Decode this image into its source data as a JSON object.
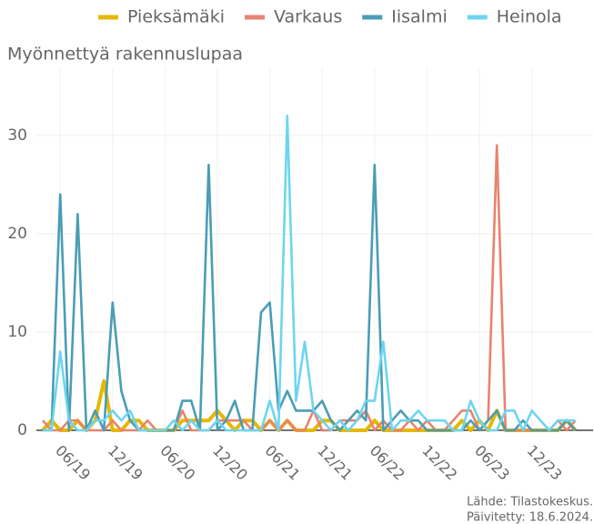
{
  "chart_data": {
    "type": "line",
    "title": "Myönnettyä rakennuslupaa",
    "source": "Lähde: Tilastokeskus.",
    "updated": "Päivitetty: 18.6.2024.",
    "x": [
      "2019-04",
      "2019-05",
      "2019-06",
      "2019-07",
      "2019-08",
      "2019-09",
      "2019-10",
      "2019-11",
      "2019-12",
      "2020-01",
      "2020-02",
      "2020-03",
      "2020-04",
      "2020-05",
      "2020-06",
      "2020-07",
      "2020-08",
      "2020-09",
      "2020-10",
      "2020-11",
      "2020-12",
      "2021-01",
      "2021-02",
      "2021-03",
      "2021-04",
      "2021-05",
      "2021-06",
      "2021-07",
      "2021-08",
      "2021-09",
      "2021-10",
      "2021-11",
      "2021-12",
      "2022-01",
      "2022-02",
      "2022-03",
      "2022-04",
      "2022-05",
      "2022-06",
      "2022-07",
      "2022-08",
      "2022-09",
      "2022-10",
      "2022-11",
      "2022-12",
      "2023-01",
      "2023-02",
      "2023-03",
      "2023-04",
      "2023-05",
      "2023-06",
      "2023-07",
      "2023-08",
      "2023-09",
      "2023-10",
      "2023-11",
      "2023-12",
      "2024-01",
      "2024-02",
      "2024-03",
      "2024-04",
      "2024-05"
    ],
    "series": [
      {
        "name": "Pieksämäki",
        "color": "#e6b800",
        "values": [
          0,
          1,
          0,
          0,
          1,
          0,
          1,
          5,
          0,
          0,
          1,
          1,
          0,
          0,
          0,
          0,
          1,
          1,
          1,
          1,
          2,
          1,
          0,
          1,
          1,
          0,
          1,
          0,
          1,
          0,
          0,
          0,
          1,
          1,
          0,
          0,
          0,
          0,
          1,
          0,
          0,
          0,
          0,
          0,
          0,
          0,
          0,
          0,
          1,
          0,
          1,
          0,
          2,
          0,
          0,
          0,
          0,
          0,
          0,
          0,
          1,
          0
        ]
      },
      {
        "name": "Varkaus",
        "color": "#e8836e",
        "values": [
          1,
          0,
          0,
          1,
          1,
          0,
          0,
          0,
          1,
          0,
          0,
          0,
          1,
          0,
          0,
          0,
          2,
          0,
          0,
          0,
          1,
          1,
          1,
          1,
          0,
          0,
          1,
          0,
          1,
          0,
          0,
          2,
          0,
          0,
          1,
          1,
          1,
          2,
          0,
          1,
          0,
          0,
          1,
          0,
          1,
          0,
          0,
          1,
          2,
          2,
          0,
          1,
          29,
          0,
          0,
          0,
          0,
          0,
          0,
          1,
          0,
          1
        ]
      },
      {
        "name": "Iisalmi",
        "color": "#4a9db5",
        "values": [
          0,
          0,
          24,
          0,
          22,
          0,
          2,
          0,
          13,
          4,
          1,
          0,
          0,
          0,
          0,
          0,
          3,
          3,
          0,
          27,
          0,
          1,
          3,
          0,
          0,
          12,
          13,
          2,
          4,
          2,
          2,
          2,
          3,
          1,
          0,
          1,
          2,
          1,
          27,
          0,
          1,
          2,
          1,
          1,
          0,
          0,
          0,
          0,
          0,
          1,
          0,
          1,
          2,
          0,
          0,
          1,
          0,
          0,
          0,
          0,
          1,
          0
        ]
      },
      {
        "name": "Heinola",
        "color": "#6dd5f0",
        "values": [
          0,
          0,
          8,
          1,
          0,
          0,
          1,
          1,
          2,
          1,
          2,
          0,
          0,
          0,
          0,
          1,
          0,
          1,
          0,
          0,
          1,
          0,
          0,
          0,
          0,
          0,
          3,
          0,
          32,
          3,
          9,
          2,
          1,
          0,
          1,
          0,
          1,
          3,
          3,
          9,
          0,
          1,
          1,
          2,
          1,
          1,
          1,
          0,
          0,
          3,
          1,
          0,
          0,
          2,
          2,
          0,
          2,
          1,
          0,
          1,
          1,
          1
        ]
      }
    ],
    "ylim": [
      0,
      36
    ],
    "yticks": [
      0,
      10,
      20,
      30
    ],
    "xticks": [
      {
        "value": "2019-06",
        "label": "06/19"
      },
      {
        "value": "2019-12",
        "label": "12/19"
      },
      {
        "value": "2020-06",
        "label": "06/20"
      },
      {
        "value": "2020-12",
        "label": "12/20"
      },
      {
        "value": "2021-06",
        "label": "06/21"
      },
      {
        "value": "2021-12",
        "label": "12/21"
      },
      {
        "value": "2022-06",
        "label": "06/22"
      },
      {
        "value": "2022-12",
        "label": "12/22"
      },
      {
        "value": "2023-06",
        "label": "06/23"
      },
      {
        "value": "2023-12",
        "label": "12/23"
      }
    ],
    "grid": true,
    "legend": "top"
  }
}
